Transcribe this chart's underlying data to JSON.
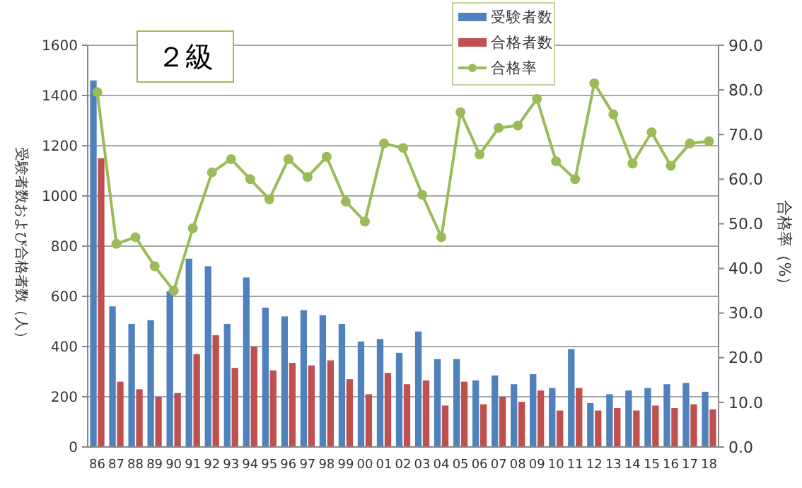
{
  "chart_data": {
    "type": "bar",
    "title": "２級",
    "ylabel": "受験者数および合格者数（人）",
    "y2label": "合格率（%）",
    "categories": [
      "86",
      "87",
      "88",
      "89",
      "90",
      "91",
      "92",
      "93",
      "94",
      "95",
      "96",
      "97",
      "98",
      "99",
      "00",
      "01",
      "02",
      "03",
      "04",
      "05",
      "06",
      "07",
      "08",
      "09",
      "10",
      "11",
      "12",
      "13",
      "14",
      "15",
      "16",
      "17",
      "18"
    ],
    "series": [
      {
        "name": "受験者数",
        "color": "#4f81bd",
        "values": [
          1460,
          560,
          490,
          505,
          620,
          750,
          720,
          490,
          675,
          555,
          520,
          545,
          525,
          490,
          420,
          430,
          375,
          460,
          350,
          350,
          265,
          285,
          250,
          290,
          235,
          390,
          175,
          210,
          225,
          235,
          250,
          255,
          220
        ]
      },
      {
        "name": "合格者数",
        "color": "#c0504d",
        "values": [
          1150,
          260,
          230,
          200,
          215,
          370,
          445,
          315,
          400,
          305,
          335,
          325,
          345,
          270,
          210,
          295,
          250,
          265,
          165,
          260,
          170,
          200,
          180,
          225,
          145,
          235,
          145,
          155,
          145,
          165,
          155,
          170,
          150
        ]
      },
      {
        "name": "合格率",
        "type": "line",
        "axis": "y2",
        "color": "#9bbb59",
        "marker": "circle",
        "values": [
          79.5,
          45.5,
          47,
          40.5,
          35,
          49,
          61.5,
          64.5,
          60,
          55.5,
          64.5,
          60.5,
          65,
          55,
          50.5,
          68,
          67,
          56.5,
          47,
          75,
          65.5,
          71.5,
          72,
          78,
          64,
          60,
          81.5,
          74.5,
          63.5,
          70.5,
          63,
          68,
          68.5
        ]
      }
    ],
    "ylim": [
      0,
      1600
    ],
    "yticks": [
      0,
      200,
      400,
      600,
      800,
      1000,
      1200,
      1400,
      1600
    ],
    "y2lim": [
      0,
      90
    ],
    "y2ticks": [
      {
        "value": 0,
        "label": "0.0"
      },
      {
        "value": 10,
        "label": "10.0"
      },
      {
        "value": 20,
        "label": "20.0"
      },
      {
        "value": 30,
        "label": "30.0"
      },
      {
        "value": 40,
        "label": "40.0"
      },
      {
        "value": 50,
        "label": "50.0"
      },
      {
        "value": 60,
        "label": "60.0"
      },
      {
        "value": 70,
        "label": "70.0"
      },
      {
        "value": 80,
        "label": "80.0"
      },
      {
        "value": 90,
        "label": "90.0"
      }
    ],
    "grid": "y",
    "legend": "top"
  }
}
